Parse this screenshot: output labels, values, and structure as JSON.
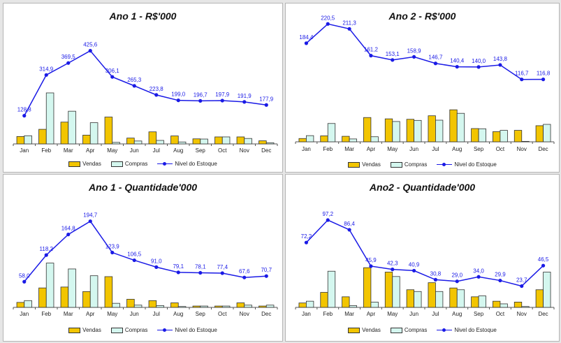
{
  "chart_data": [
    {
      "type": "bar",
      "title": "Ano 1 - R$'000",
      "categories": [
        "Jan",
        "Feb",
        "Mar",
        "Apr",
        "May",
        "Jun",
        "Jul",
        "Aug",
        "Sep",
        "Oct",
        "Nov",
        "Dec"
      ],
      "series": [
        {
          "name": "Vendas",
          "type": "bar",
          "values": [
            38,
            75,
            112,
            45,
            138,
            30,
            62,
            41,
            26,
            36,
            36,
            16
          ],
          "color": "#f2c500"
        },
        {
          "name": "Compras",
          "type": "bar",
          "values": [
            42,
            262,
            168,
            109,
            8,
            15,
            18,
            10,
            25,
            36,
            28,
            6
          ],
          "color": "#d4f7ef"
        },
        {
          "name": "Nivel do Estoque",
          "type": "line",
          "values": [
            128.8,
            314.9,
            369.5,
            425.6,
            306.1,
            265.3,
            223.8,
            199.0,
            196.7,
            197.9,
            191.9,
            177.9
          ],
          "labels": [
            "128,8",
            "314,9",
            "369,5",
            "425,6",
            "306,1",
            "265,3",
            "223,8",
            "199,0",
            "196,7",
            "197,9",
            "191,9",
            "177,9"
          ],
          "color": "#1a1ae6"
        }
      ],
      "line_range": [
        0,
        450
      ],
      "bar_max": 470,
      "legend": "bottom"
    },
    {
      "type": "bar",
      "title": "Ano 2 - R$'000",
      "categories": [
        "Jan",
        "Feb",
        "Mar",
        "Apr",
        "May",
        "Jun",
        "Jul",
        "Aug",
        "Sep",
        "Oct",
        "Nov",
        "Dec"
      ],
      "series": [
        {
          "name": "Vendas",
          "type": "bar",
          "values": [
            15,
            27,
            25,
            110,
            104,
            102,
            118,
            145,
            60,
            46,
            52,
            73
          ],
          "color": "#f2c500"
        },
        {
          "name": "Compras",
          "type": "bar",
          "values": [
            28,
            83,
            13,
            23,
            92,
            97,
            98,
            129,
            59,
            52,
            2,
            79
          ],
          "color": "#d4f7ef"
        },
        {
          "name": "Nivel do Estoque",
          "type": "line",
          "values": [
            184.4,
            220.5,
            211.3,
            161.2,
            153.1,
            158.9,
            146.7,
            140.4,
            140.0,
            143.8,
            116.7,
            116.8
          ],
          "labels": [
            "184,4",
            "220,5",
            "211,3",
            "161,2",
            "153,1",
            "158,9",
            "146,7",
            "140,4",
            "140,0",
            "143,8",
            "116,7",
            "116,8"
          ],
          "color": "#1a1ae6"
        }
      ],
      "line_range": [
        0,
        230
      ],
      "bar_max": 525,
      "legend": "bottom"
    },
    {
      "type": "bar",
      "title": "Ano 1 - Quantidade'000",
      "categories": [
        "Jan",
        "Feb",
        "Mar",
        "Apr",
        "May",
        "Jun",
        "Jul",
        "Aug",
        "Sep",
        "Oct",
        "Nov",
        "Dec"
      ],
      "series": [
        {
          "name": "Vendas",
          "type": "bar",
          "values": [
            11,
            43,
            45,
            35,
            68,
            18,
            15,
            10,
            3,
            3,
            10,
            3
          ],
          "color": "#f2c500"
        },
        {
          "name": "Compras",
          "type": "bar",
          "values": [
            15,
            98,
            85,
            70,
            9,
            5,
            4,
            2,
            3,
            3,
            5,
            5
          ],
          "color": "#d4f7ef"
        },
        {
          "name": "Nivel do Estoque",
          "type": "line",
          "values": [
            58.0,
            118.2,
            164.8,
            194.7,
            123.9,
            106.5,
            91.0,
            79.1,
            78.1,
            77.4,
            67.6,
            70.7
          ],
          "labels": [
            "58,0",
            "118,2",
            "164,8",
            "194,7",
            "123,9",
            "106,5",
            "91,0",
            "79,1",
            "78,1",
            "77,4",
            "67,6",
            "70,7"
          ],
          "color": "#1a1ae6"
        }
      ],
      "line_range": [
        0,
        210
      ],
      "bar_max": 190,
      "legend": "bottom"
    },
    {
      "type": "bar",
      "title": "Ano2 - Quantidade'000",
      "categories": [
        "Jan",
        "Feb",
        "Mar",
        "Apr",
        "May",
        "Jun",
        "Jul",
        "Aug",
        "Sep",
        "Oct",
        "Nov",
        "Dec"
      ],
      "series": [
        {
          "name": "Vendas",
          "type": "bar",
          "values": [
            5,
            17,
            12,
            45,
            40,
            20,
            28,
            22,
            12,
            7,
            6,
            20
          ],
          "color": "#f2c500"
        },
        {
          "name": "Compras",
          "type": "bar",
          "values": [
            7,
            41,
            2,
            6,
            35,
            18,
            18,
            20,
            13,
            4,
            1,
            40
          ],
          "color": "#d4f7ef"
        },
        {
          "name": "Nivel do Estoque",
          "type": "line",
          "values": [
            72.2,
            97.2,
            86.4,
            45.9,
            42.3,
            40.9,
            30.8,
            29.0,
            34.0,
            29.9,
            23.7,
            46.5
          ],
          "labels": [
            "72,2",
            "97,2",
            "86,4",
            "45,9",
            "42,3",
            "40,9",
            "30,8",
            "29,0",
            "34,0",
            "29,9",
            "23,7",
            "46,5"
          ],
          "color": "#1a1ae6"
        }
      ],
      "line_range": [
        0,
        105
      ],
      "bar_max": 99,
      "legend": "bottom"
    }
  ]
}
